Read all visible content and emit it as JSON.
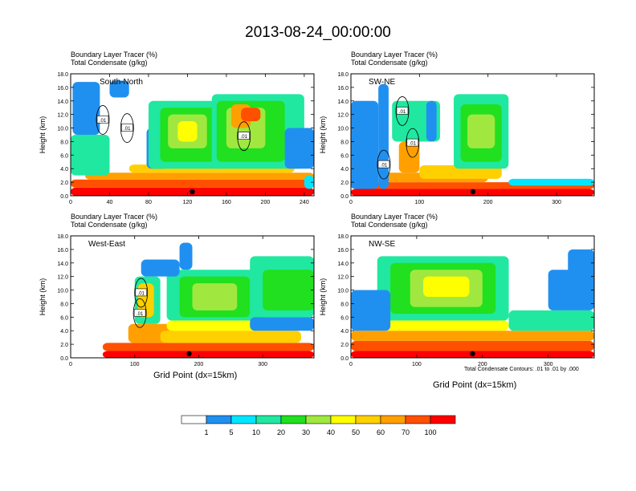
{
  "title": "2013-08-24_00:00:00",
  "panel_line1": "Boundary Layer Tracer   (%)",
  "panel_line2": "Total Condensate   (g/kg)",
  "xlabel": "Grid Point (dx=15km)",
  "contour_note": "Total Condensate Contours: .01 to .01 by .000",
  "colorbar": {
    "colors": [
      "#ffffff",
      "#2090f0",
      "#00e6ff",
      "#20e8a0",
      "#20e020",
      "#a0e840",
      "#ffff00",
      "#ffd000",
      "#ffa000",
      "#ff5000",
      "#ff0000"
    ],
    "labels": [
      "1",
      "5",
      "10",
      "20",
      "30",
      "40",
      "50",
      "60",
      "70",
      "100"
    ]
  },
  "chart_data": [
    {
      "type": "heatmap",
      "name": "South-North",
      "title": "Boundary Layer Tracer (%) / Total Condensate (g/kg)",
      "ylabel": "Height (km)",
      "xlabel": "",
      "xlim": [
        0,
        250
      ],
      "ylim": [
        0,
        18
      ],
      "xticks": [
        0,
        40,
        80,
        120,
        160,
        200,
        240
      ],
      "yticks": [
        0.0,
        2.0,
        4.0,
        6.0,
        8.0,
        10.0,
        12.0,
        14.0,
        16.0,
        18.0
      ],
      "contour_labels": [
        {
          "text": ".01",
          "x": 33,
          "y": 11.2
        },
        {
          "text": ".01",
          "x": 58,
          "y": 10.0
        },
        {
          "text": ".01",
          "x": 178,
          "y": 8.8
        }
      ],
      "marker_x": 125
    },
    {
      "type": "heatmap",
      "name": "SW-NE",
      "title": "Boundary Layer Tracer (%) / Total Condensate (g/kg)",
      "ylabel": "Height (km)",
      "xlabel": "",
      "xlim": [
        0,
        355
      ],
      "ylim": [
        0,
        18
      ],
      "xticks": [
        0,
        100,
        200,
        300
      ],
      "yticks": [
        0.0,
        2.0,
        4.0,
        6.0,
        8.0,
        10.0,
        12.0,
        14.0,
        16.0,
        18.0
      ],
      "contour_labels": [
        {
          "text": ".01",
          "x": 75,
          "y": 12.5
        },
        {
          "text": ".01",
          "x": 90,
          "y": 7.8
        },
        {
          "text": ".01",
          "x": 48,
          "y": 4.6
        }
      ],
      "marker_x": 178
    },
    {
      "type": "heatmap",
      "name": "West-East",
      "title": "Boundary Layer Tracer (%) / Total Condensate (g/kg)",
      "ylabel": "Height (km)",
      "xlabel": "Grid Point (dx=15km)",
      "xlim": [
        0,
        380
      ],
      "ylim": [
        0,
        18
      ],
      "xticks": [
        0,
        100,
        200,
        300
      ],
      "yticks": [
        0.0,
        2.0,
        4.0,
        6.0,
        8.0,
        10.0,
        12.0,
        14.0,
        16.0,
        18.0
      ],
      "contour_labels": [
        {
          "text": ".01",
          "x": 110,
          "y": 9.6
        },
        {
          "text": ".01",
          "x": 108,
          "y": 6.6
        }
      ],
      "marker_x": 185
    },
    {
      "type": "heatmap",
      "name": "NW-SE",
      "title": "Boundary Layer Tracer (%) / Total Condensate (g/kg)",
      "ylabel": "Height (km)",
      "xlabel": "Grid Point (dx=15km)",
      "xlim": [
        0,
        370
      ],
      "ylim": [
        0,
        18
      ],
      "xticks": [
        0,
        100,
        200,
        300
      ],
      "yticks": [
        0.0,
        2.0,
        4.0,
        6.0,
        8.0,
        10.0,
        12.0,
        14.0,
        16.0,
        18.0
      ],
      "contour_labels": [],
      "marker_x": 185
    }
  ]
}
